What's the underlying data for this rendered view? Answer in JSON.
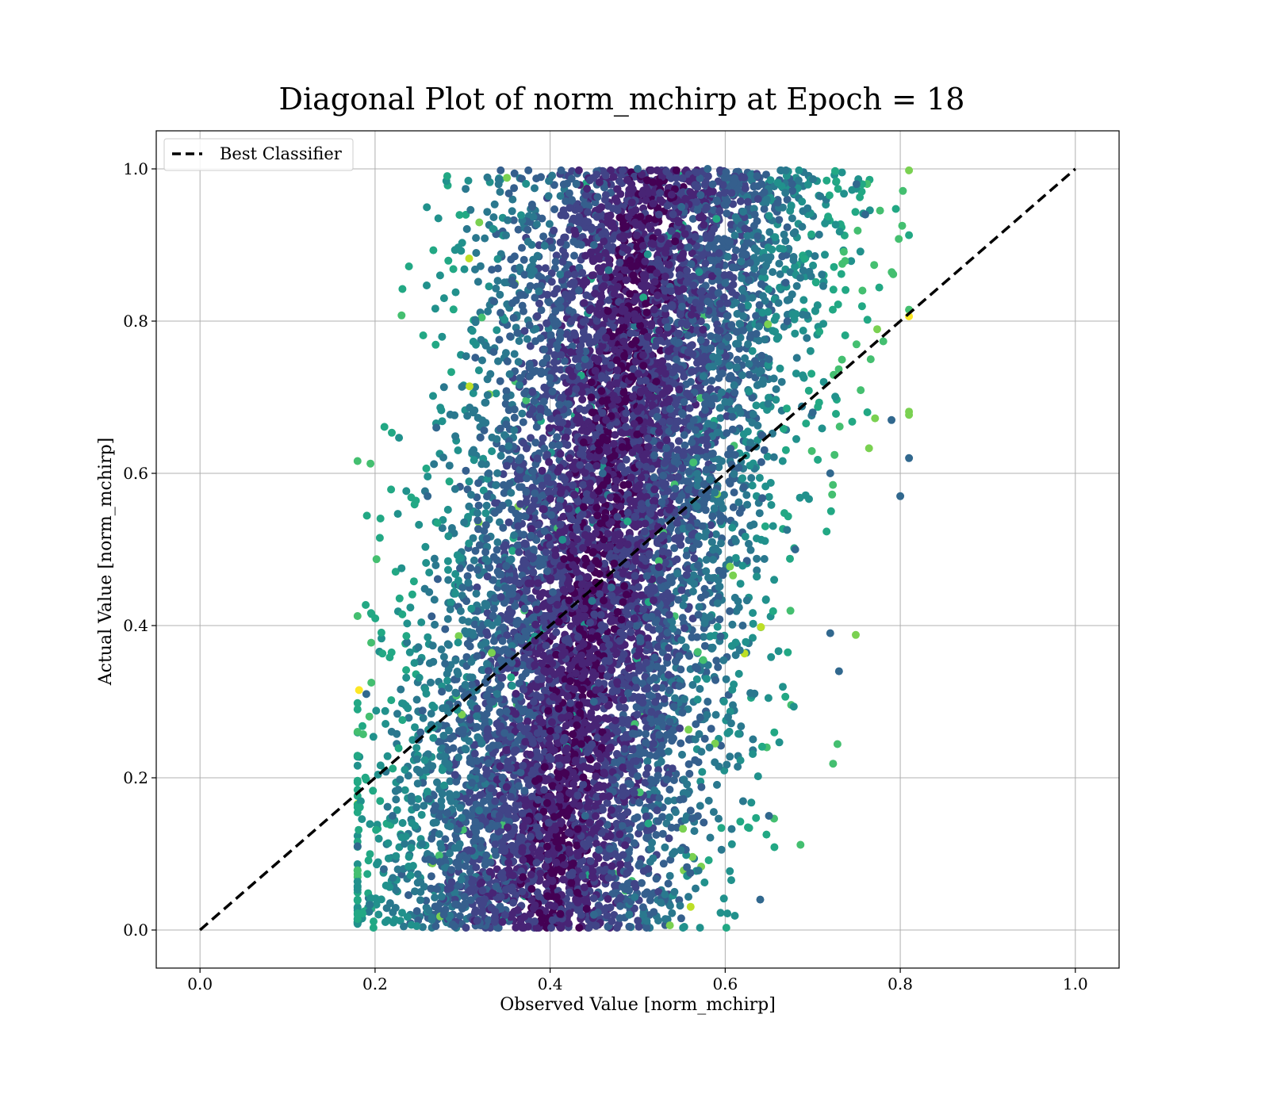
{
  "chart_data": {
    "type": "scatter",
    "title": "Diagonal Plot of norm_mchirp at Epoch = 18",
    "xlabel": "Observed Value [norm_mchirp]",
    "ylabel": "Actual Value [norm_mchirp]",
    "xlim": [
      -0.05,
      1.05
    ],
    "ylim": [
      -0.05,
      1.05
    ],
    "xticks": [
      "0.0",
      "0.2",
      "0.4",
      "0.6",
      "0.8",
      "1.0"
    ],
    "yticks": [
      "0.0",
      "0.2",
      "0.4",
      "0.6",
      "0.8",
      "1.0"
    ],
    "xtick_values": [
      0.0,
      0.2,
      0.4,
      0.6,
      0.8,
      1.0
    ],
    "ytick_values": [
      0.0,
      0.2,
      0.4,
      0.6,
      0.8,
      1.0
    ],
    "grid": true,
    "legend": {
      "position": "top-left",
      "entries": [
        "Best Classifier"
      ]
    },
    "reference_line": {
      "name": "Best Classifier",
      "x": [
        0.0,
        1.0
      ],
      "y": [
        0.0,
        1.0
      ],
      "style": "dashed",
      "color": "#000000"
    },
    "colormap": "viridis",
    "scatter_description_points": [
      [
        0.43,
        0.98
      ],
      [
        0.45,
        0.9
      ],
      [
        0.44,
        0.75
      ],
      [
        0.46,
        0.6
      ],
      [
        0.47,
        0.45
      ],
      [
        0.45,
        0.3
      ],
      [
        0.44,
        0.15
      ],
      [
        0.45,
        0.02
      ],
      [
        0.55,
        0.95
      ],
      [
        0.6,
        0.85
      ],
      [
        0.65,
        0.75
      ],
      [
        0.7,
        0.68
      ],
      [
        0.72,
        0.6
      ],
      [
        0.68,
        0.5
      ],
      [
        0.62,
        0.4
      ],
      [
        0.58,
        0.3
      ],
      [
        0.35,
        0.7
      ],
      [
        0.33,
        0.6
      ],
      [
        0.3,
        0.45
      ],
      [
        0.28,
        0.35
      ],
      [
        0.25,
        0.25
      ],
      [
        0.22,
        0.15
      ],
      [
        0.21,
        0.08
      ],
      [
        0.8,
        0.57
      ],
      [
        0.81,
        0.62
      ],
      [
        0.79,
        0.67
      ],
      [
        0.19,
        0.31
      ],
      [
        0.18,
        0.11
      ],
      [
        0.27,
        0.66
      ],
      [
        0.26,
        0.57
      ],
      [
        0.64,
        0.04
      ],
      [
        0.65,
        0.15
      ],
      [
        0.73,
        0.34
      ],
      [
        0.72,
        0.39
      ],
      [
        0.76,
        0.94
      ],
      [
        0.75,
        0.98
      ],
      [
        0.5,
        1.0
      ],
      [
        0.58,
        1.0
      ]
    ],
    "colors": {
      "dark": "#440154",
      "purple": "#482878",
      "blue": "#3e4a89",
      "teal_blue": "#31688e",
      "teal": "#26828e",
      "green_teal": "#1f9e89",
      "green": "#35b779",
      "light_green": "#6ece58",
      "yellow_green": "#b5de2b",
      "yellow": "#fde725"
    }
  }
}
